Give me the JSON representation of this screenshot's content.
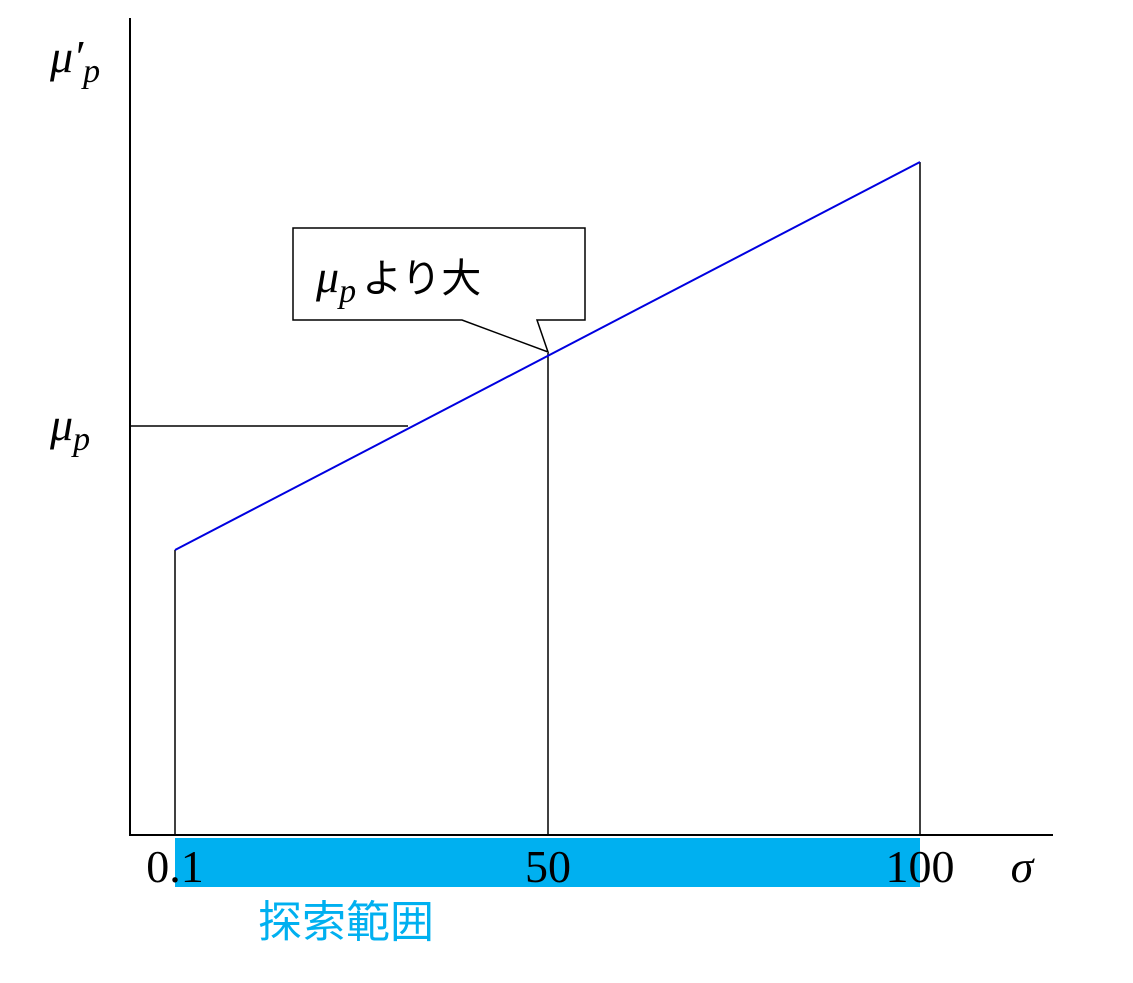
{
  "y_axis_label": {
    "base": "μ′",
    "sub": "p"
  },
  "y_level_label": {
    "base": "μ",
    "sub": "p"
  },
  "x_axis_label": "σ",
  "x_ticks": [
    "0.1",
    "50",
    "100"
  ],
  "callout": {
    "base": "μ",
    "sub": "p",
    "text": "より大"
  },
  "range_label": "探索範囲"
}
